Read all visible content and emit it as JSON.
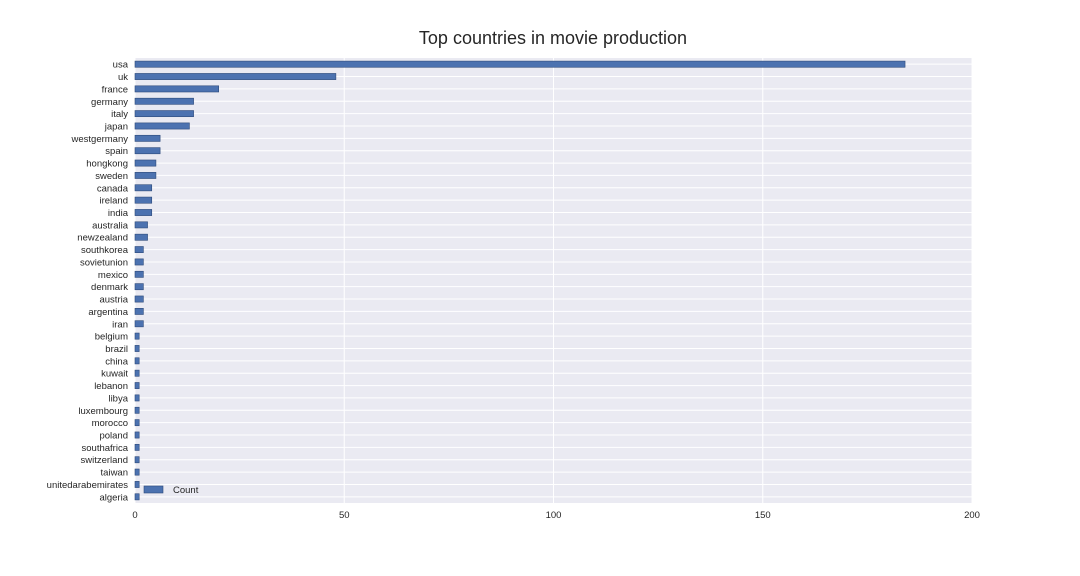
{
  "chart_data": {
    "type": "bar",
    "orientation": "horizontal",
    "title": "Top countries in movie production",
    "xlabel": "",
    "ylabel": "",
    "xlim": [
      0,
      200
    ],
    "xticks": [
      0,
      50,
      100,
      150,
      200
    ],
    "grid": true,
    "legend_position": "lower-left",
    "bar_color": "#4c72b0",
    "background_color": "#eaeaf2",
    "categories": [
      "usa",
      "uk",
      "france",
      "germany",
      "italy",
      "japan",
      "westgermany",
      "spain",
      "hongkong",
      "sweden",
      "canada",
      "ireland",
      "india",
      "australia",
      "newzealand",
      "southkorea",
      "sovietunion",
      "mexico",
      "denmark",
      "austria",
      "argentina",
      "iran",
      "belgium",
      "brazil",
      "china",
      "kuwait",
      "lebanon",
      "libya",
      "luxembourg",
      "morocco",
      "poland",
      "southafrica",
      "switzerland",
      "taiwan",
      "unitedarabemirates",
      "algeria"
    ],
    "series": [
      {
        "name": "Count",
        "values": [
          184,
          48,
          20,
          14,
          14,
          13,
          6,
          6,
          5,
          5,
          4,
          4,
          4,
          3,
          3,
          2,
          2,
          2,
          2,
          2,
          2,
          2,
          1,
          1,
          1,
          1,
          1,
          1,
          1,
          1,
          1,
          1,
          1,
          1,
          1,
          1
        ]
      }
    ]
  }
}
